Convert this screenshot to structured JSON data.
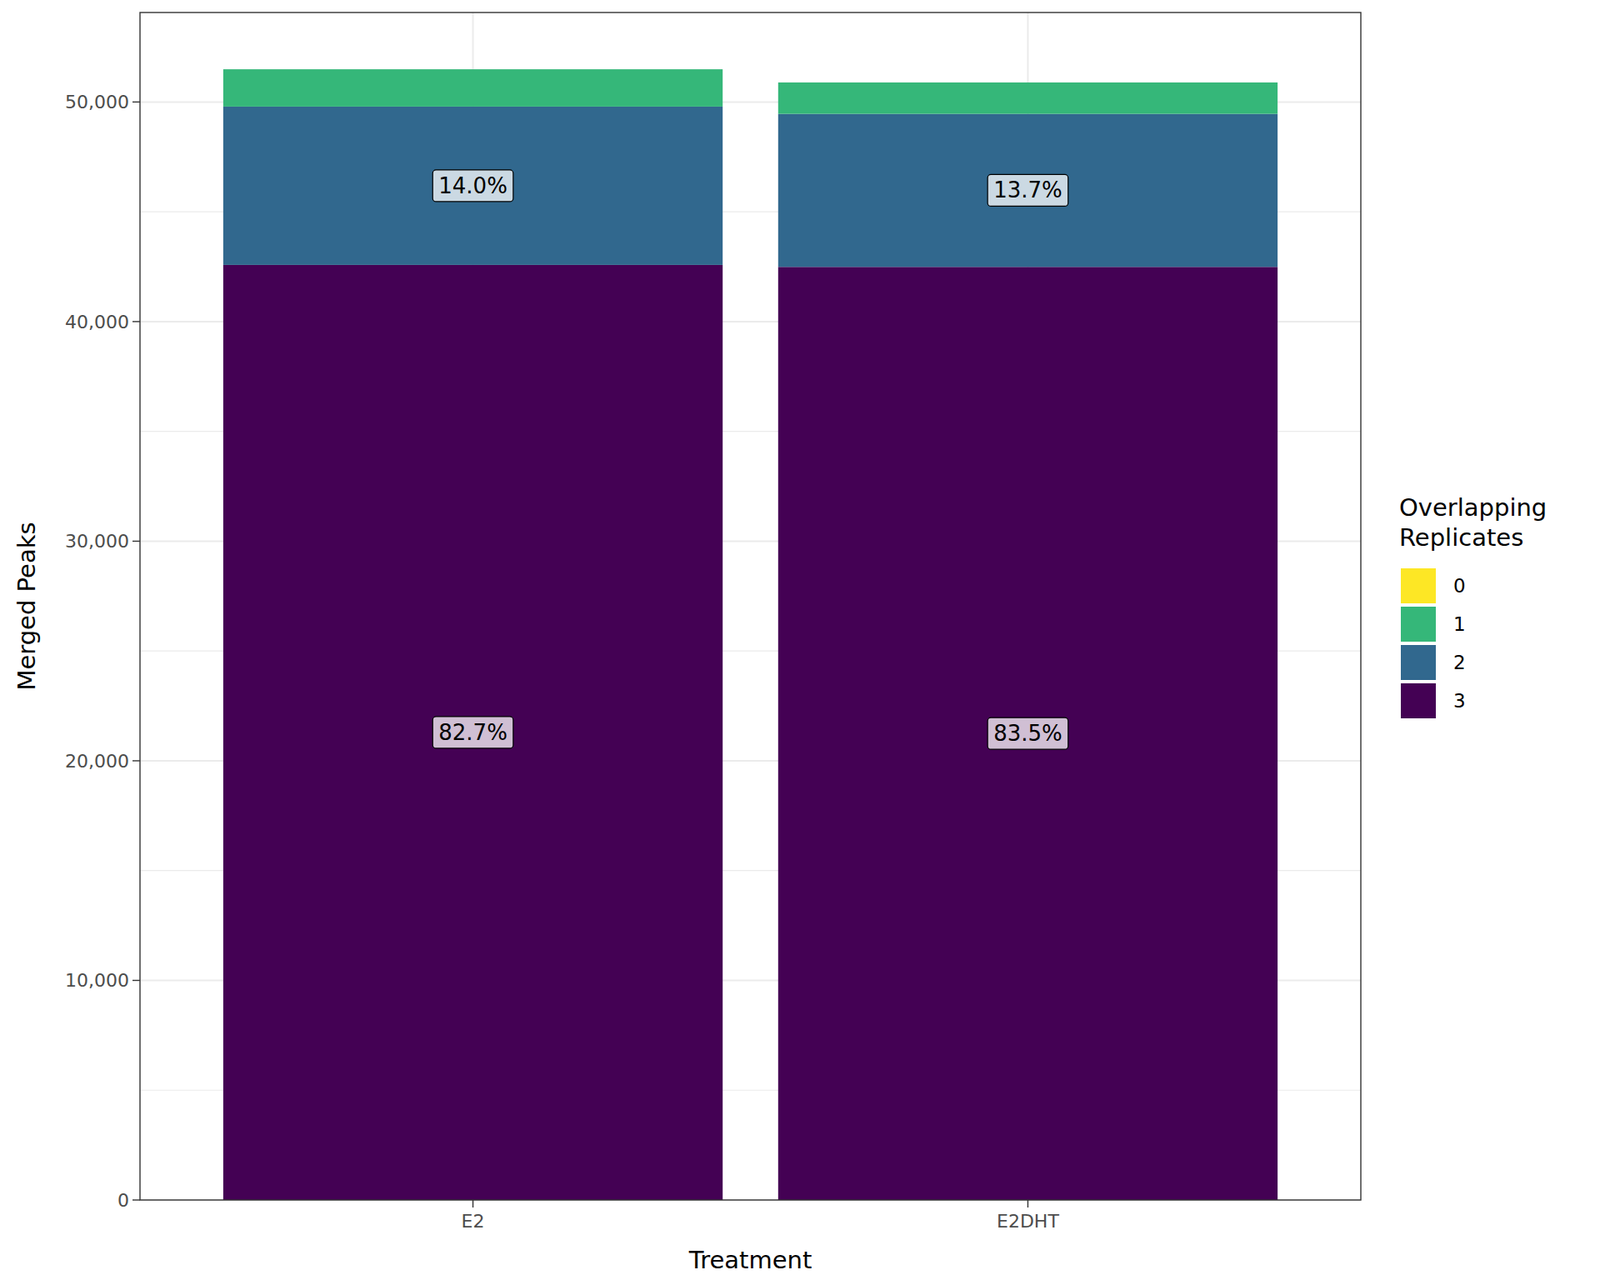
{
  "chart_data": {
    "type": "bar",
    "stacked": true,
    "grid": true,
    "data_labels": true,
    "x_label": "Treatment",
    "y_label": "Merged Peaks",
    "legend_title": "Overlapping\nReplicates",
    "categories": [
      "E2",
      "E2DHT"
    ],
    "series": [
      {
        "name": "0",
        "color": "#FDE725",
        "values": [
          0,
          0
        ],
        "share_labels": [
          null,
          null
        ]
      },
      {
        "name": "1",
        "color": "#35B779",
        "values": [
          1700,
          1430
        ],
        "share_labels": [
          null,
          null
        ]
      },
      {
        "name": "2",
        "color": "#31688E",
        "values": [
          7210,
          6970
        ],
        "share_labels": [
          "14.0%",
          "13.7%"
        ]
      },
      {
        "name": "3",
        "color": "#440154",
        "values": [
          42580,
          42490
        ],
        "share_labels": [
          "82.7%",
          "83.5%"
        ]
      }
    ],
    "ylim": [
      0,
      54075
    ],
    "yticks": [
      0,
      {
        "value": 10000,
        "label": "10,000"
      },
      {
        "value": 20000,
        "label": "20,000"
      },
      {
        "value": 30000,
        "label": "30,000"
      },
      {
        "value": 40000,
        "label": "40,000"
      },
      {
        "value": 50000,
        "label": "50,000"
      }
    ],
    "legend": "right"
  }
}
